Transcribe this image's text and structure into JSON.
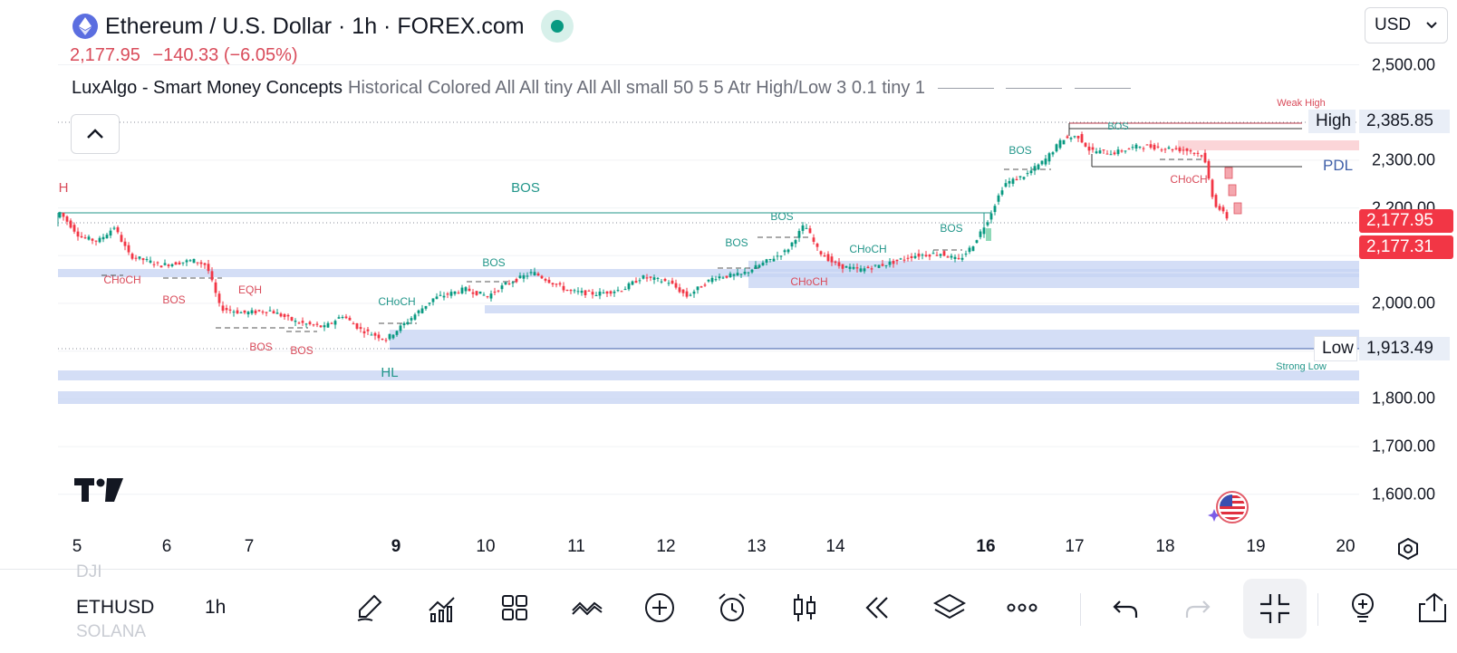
{
  "header": {
    "title": "Ethereum / U.S. Dollar · 1h · FOREX.com",
    "price": "2,177.95",
    "change": "−140.33 (−6.05%)",
    "indicator_name": "LuxAlgo - Smart Money Concepts",
    "indicator_params": "Historical Colored All All tiny All All small 50 5 5 Atr High/Low 3 0.1 tiny 1"
  },
  "currency_select": {
    "value": "USD"
  },
  "price_axis": {
    "labels": [
      "2,500.00",
      "2,300.00",
      "2,200.00",
      "2,000.00",
      "1,800.00",
      "1,700.00",
      "1,600.00"
    ]
  },
  "tags": {
    "high_label": "High",
    "high_value": "2,385.85",
    "low_label": "Low",
    "low_value": "1,913.49",
    "pdl": "PDL",
    "last_price": "2,177.95",
    "second_price": "2,177.31"
  },
  "time_axis": {
    "labels": [
      "5",
      "6",
      "7",
      "9",
      "10",
      "11",
      "12",
      "13",
      "14",
      "16",
      "17",
      "18",
      "19",
      "20"
    ],
    "bold": [
      "9",
      "16"
    ]
  },
  "annotations": {
    "h": "H",
    "hl": "HL",
    "bos": "BOS",
    "choch": "CHoCH",
    "eqh": "EQH",
    "weak_high": "Weak High",
    "strong_low": "Strong Low"
  },
  "bottom_bar": {
    "symbol": "ETHUSD",
    "interval": "1h",
    "ghost_top": "DJI",
    "ghost_bottom": "SOLANA"
  },
  "toolbar_icons": [
    "pen-icon",
    "indicators-icon",
    "layout-grid-icon",
    "drawings-icon",
    "add-circle-icon",
    "alert-clock-icon",
    "candles-icon",
    "replay-icon",
    "layers-icon",
    "more-icon",
    "undo-icon",
    "redo-icon",
    "fullscreen-exit-icon",
    "ideas-icon",
    "share-icon"
  ],
  "colors": {
    "up": "#089981",
    "down": "#f23645",
    "choch_red": "#d94b5a",
    "bos_green": "#22968a",
    "zone_blue": "#c5d3f3",
    "zone_red": "#fbd5d8"
  }
}
